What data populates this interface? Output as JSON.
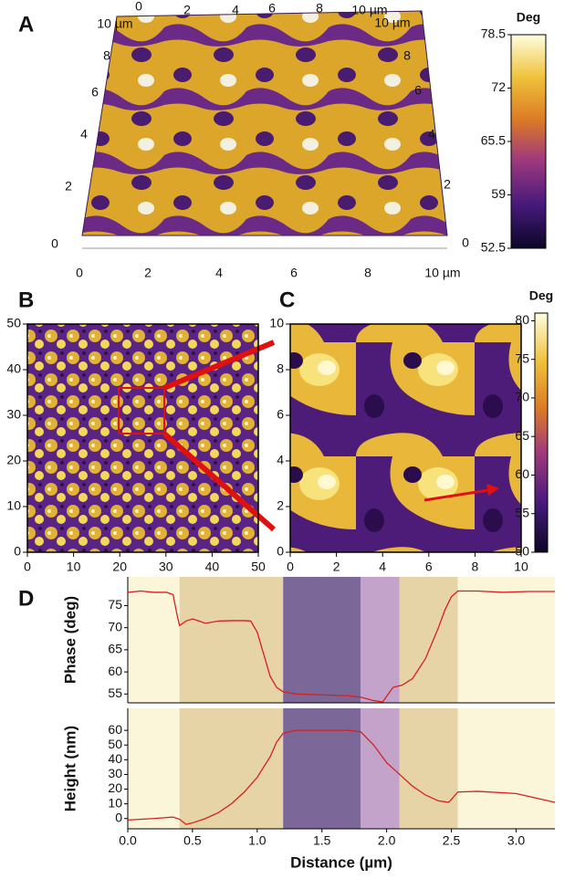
{
  "chart_data": [
    {
      "type": "surface",
      "panel": "A",
      "xticks": [
        0,
        2,
        4,
        6,
        8,
        {
          "value": 10,
          "label": "10 µm"
        }
      ],
      "left_ticks": [
        0,
        2,
        4,
        6,
        8,
        {
          "value": 10,
          "label": "10 µm"
        }
      ],
      "right_ticks": [
        0,
        2,
        4,
        6,
        8,
        {
          "value": 10,
          "label": "10 µm"
        }
      ],
      "top_ticks": [
        0,
        2,
        4,
        6,
        8,
        {
          "value": 10,
          "label": "10 µm"
        }
      ],
      "colorbar": {
        "title": "Deg",
        "clim": [
          52.5,
          78.5
        ],
        "ticks": [
          78.5,
          72,
          65.5,
          59,
          52.5
        ]
      }
    },
    {
      "type": "image",
      "panel": "B",
      "xlim": [
        0,
        50
      ],
      "ylim": [
        0,
        50
      ],
      "xticks": [
        0,
        10,
        20,
        30,
        40,
        50
      ],
      "yticks": [
        0,
        10,
        20,
        30,
        40,
        50
      ]
    },
    {
      "type": "image",
      "panel": "C",
      "xlim": [
        0,
        10
      ],
      "ylim": [
        0,
        10
      ],
      "xticks": [
        0,
        2,
        4,
        6,
        8,
        10
      ],
      "yticks": [
        0,
        2,
        4,
        6,
        8,
        10
      ],
      "colorbar": {
        "title": "Deg",
        "clim": [
          50,
          81
        ],
        "ticks": [
          50,
          55,
          60,
          65,
          70,
          75,
          80
        ]
      }
    },
    {
      "type": "line",
      "panel": "D",
      "ylabel": "Phase (deg)",
      "xlim": [
        0,
        3.3
      ],
      "ylim": [
        53,
        81.5
      ],
      "yticks": [
        55,
        60,
        65,
        70,
        75
      ],
      "regions": [
        {
          "from": 0,
          "to": 0.4,
          "color": "#fbf6d9"
        },
        {
          "from": 0.4,
          "to": 1.2,
          "color": "#e6d3a6"
        },
        {
          "from": 1.2,
          "to": 1.8,
          "color": "#7b6899"
        },
        {
          "from": 1.8,
          "to": 2.1,
          "color": "#c3a3c9"
        },
        {
          "from": 2.1,
          "to": 2.55,
          "color": "#e6d3a6"
        },
        {
          "from": 2.55,
          "to": 3.3,
          "color": "#fbf6d9"
        }
      ],
      "x": [
        0,
        0.1,
        0.2,
        0.3,
        0.35,
        0.38,
        0.4,
        0.45,
        0.5,
        0.55,
        0.6,
        0.7,
        0.8,
        0.9,
        0.95,
        1.0,
        1.05,
        1.1,
        1.15,
        1.2,
        1.3,
        1.5,
        1.7,
        1.8,
        1.9,
        1.97,
        2.0,
        2.05,
        2.12,
        2.2,
        2.3,
        2.4,
        2.45,
        2.5,
        2.55,
        2.7,
        2.9,
        3.1,
        3.3
      ],
      "series": [
        {
          "color": "#d62020",
          "values": [
            78,
            78.3,
            78,
            78,
            77.5,
            73,
            70.5,
            71.5,
            72,
            71.5,
            71,
            71.5,
            71.6,
            71.6,
            71.5,
            69,
            64,
            59,
            56.5,
            55.5,
            55,
            54.8,
            54.6,
            54.3,
            53.5,
            53.2,
            54.5,
            56.5,
            57,
            58.5,
            63,
            70,
            74,
            77,
            78.3,
            78.3,
            78,
            78.2,
            78.2
          ]
        }
      ]
    },
    {
      "type": "line",
      "ylabel": "Height (nm)",
      "xlabel": "Distance (µm)",
      "xlim": [
        0,
        3.3
      ],
      "ylim": [
        -7,
        75
      ],
      "yticks": [
        0,
        10,
        20,
        30,
        40,
        50,
        60
      ],
      "xticks": [
        {
          "value": 0,
          "label": "0.0"
        },
        0.5,
        {
          "value": 1,
          "label": "1.0"
        },
        1.5,
        {
          "value": 2,
          "label": "2.0"
        },
        2.5,
        {
          "value": 3,
          "label": "3.0"
        }
      ],
      "regions": [
        {
          "from": 0,
          "to": 0.4,
          "color": "#fbf6d9"
        },
        {
          "from": 0.4,
          "to": 1.2,
          "color": "#e6d3a6"
        },
        {
          "from": 1.2,
          "to": 1.8,
          "color": "#7b6899"
        },
        {
          "from": 1.8,
          "to": 2.1,
          "color": "#c3a3c9"
        },
        {
          "from": 2.1,
          "to": 2.55,
          "color": "#e6d3a6"
        },
        {
          "from": 2.55,
          "to": 3.3,
          "color": "#fbf6d9"
        }
      ],
      "x": [
        0,
        0.2,
        0.35,
        0.4,
        0.45,
        0.5,
        0.6,
        0.7,
        0.8,
        0.9,
        1.0,
        1.1,
        1.15,
        1.2,
        1.3,
        1.5,
        1.7,
        1.8,
        1.9,
        2.0,
        2.1,
        2.2,
        2.3,
        2.4,
        2.48,
        2.55,
        2.7,
        3.0,
        3.3
      ],
      "series": [
        {
          "color": "#d62020",
          "values": [
            -1,
            0,
            1,
            -0.5,
            -4,
            -3,
            0,
            4,
            10,
            18,
            28,
            42,
            52,
            58,
            60,
            60,
            60,
            59,
            50,
            38,
            30,
            22,
            16,
            12,
            11,
            18,
            18.5,
            17,
            11
          ]
        }
      ]
    }
  ]
}
